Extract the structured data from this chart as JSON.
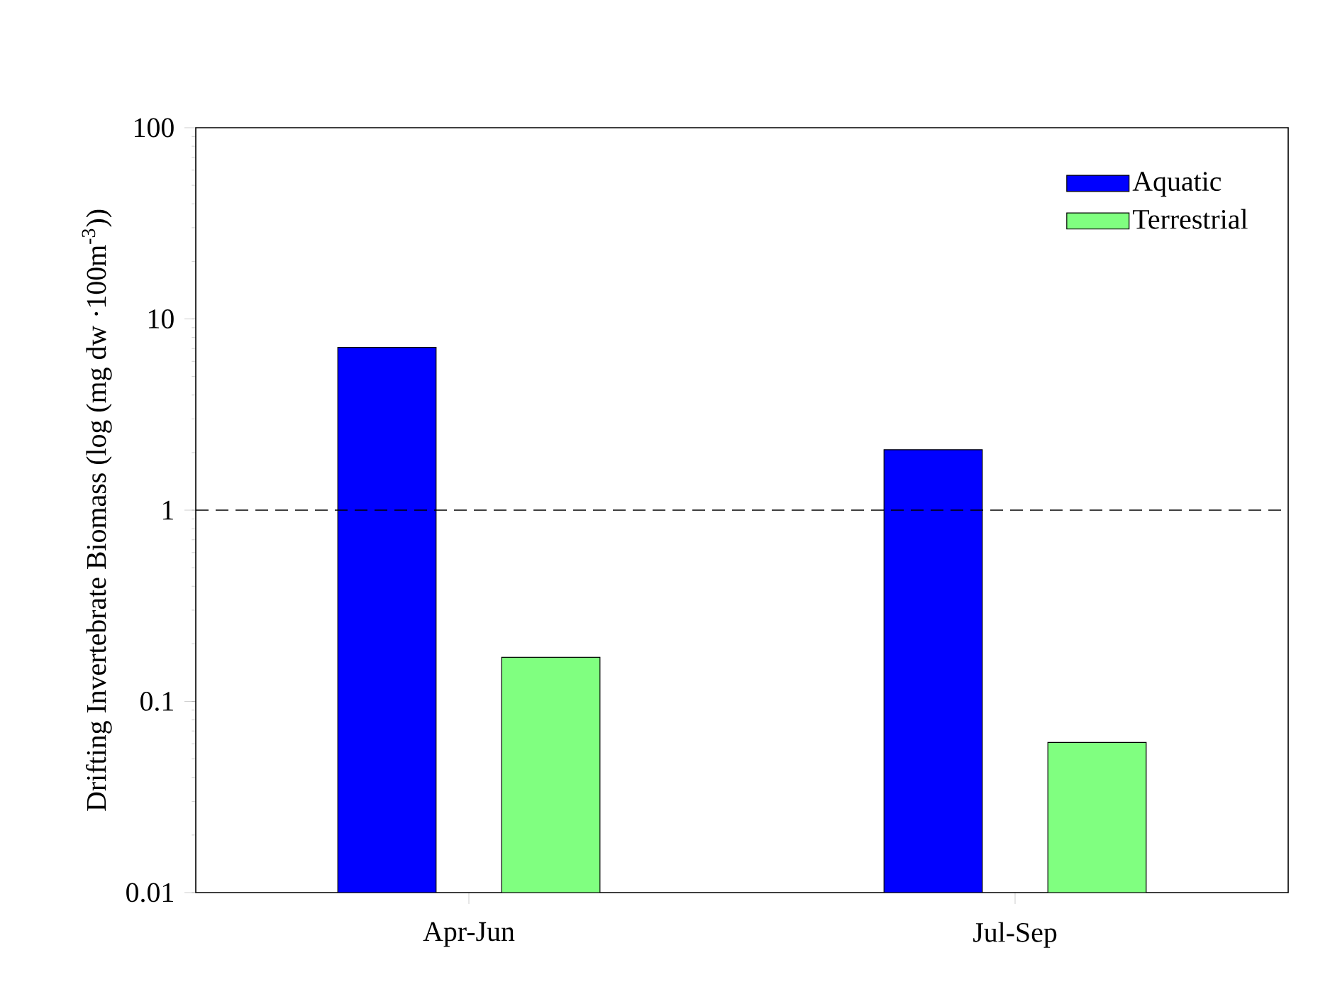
{
  "chart_data": {
    "type": "bar",
    "ylabel": "Drifting Invertebrate Biomass (log (mg dw ·100m$^{-3}$))",
    "categories": [
      "Apr-Jun",
      "Jul-Sep"
    ],
    "series": [
      {
        "name": "Aquatic",
        "color": "#0000ff",
        "values": [
          7.1,
          2.07
        ]
      },
      {
        "name": "Terrestrial",
        "color": "#80ff80",
        "values": [
          0.17,
          0.061
        ]
      }
    ],
    "log": "y",
    "ylim": [
      0.01,
      100
    ],
    "yticks": [
      0.01,
      0.1,
      1,
      10,
      100
    ],
    "legend": "top right",
    "ref_lines": [
      {
        "axis": "y",
        "value": 1,
        "line_style": "dashed"
      }
    ]
  }
}
